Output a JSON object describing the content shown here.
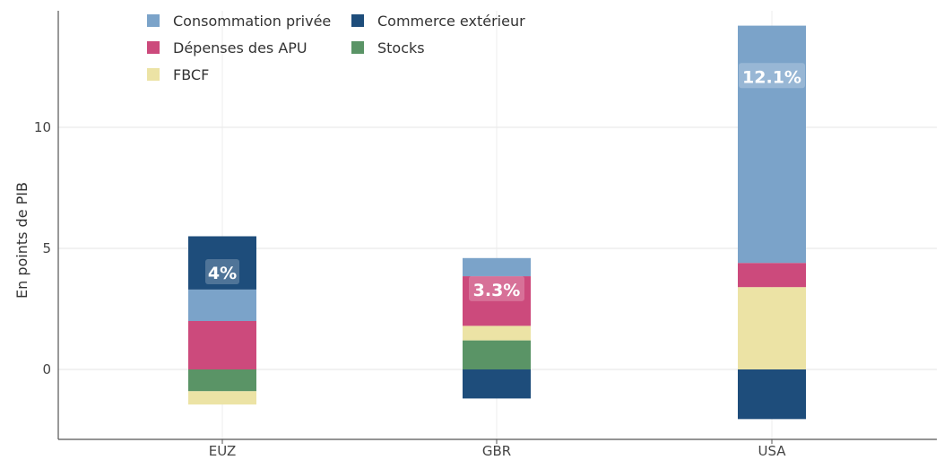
{
  "chart_data": {
    "type": "bar",
    "stacked": true,
    "categories": [
      "EUZ",
      "GBR",
      "USA"
    ],
    "ylabel": "En points de PIB",
    "yticks": [
      0,
      5,
      10
    ],
    "ylim": [
      -2.9,
      14.9
    ],
    "grid": true,
    "legend_position": "top-left",
    "series": [
      {
        "name": "Consommation privée",
        "color": "#7ba3c9",
        "values": [
          1.3,
          0.75,
          9.8
        ]
      },
      {
        "name": "Commerce extérieur",
        "color": "#1e4d7b",
        "values": [
          2.2,
          -1.2,
          -2.05
        ]
      },
      {
        "name": "Dépenses des APU",
        "color": "#cc4a7c",
        "values": [
          2.0,
          2.05,
          1.0
        ]
      },
      {
        "name": "Stocks",
        "color": "#5a9466",
        "values": [
          -0.9,
          1.2,
          0
        ]
      },
      {
        "name": "FBCF",
        "color": "#ece3a5",
        "values": [
          -0.55,
          0.6,
          3.4
        ]
      }
    ],
    "annotations": [
      {
        "category": "EUZ",
        "text": "4%",
        "y": 4.0
      },
      {
        "category": "GBR",
        "text": "3.3%",
        "y": 3.3
      },
      {
        "category": "USA",
        "text": "12.1%",
        "y": 12.1
      }
    ]
  }
}
